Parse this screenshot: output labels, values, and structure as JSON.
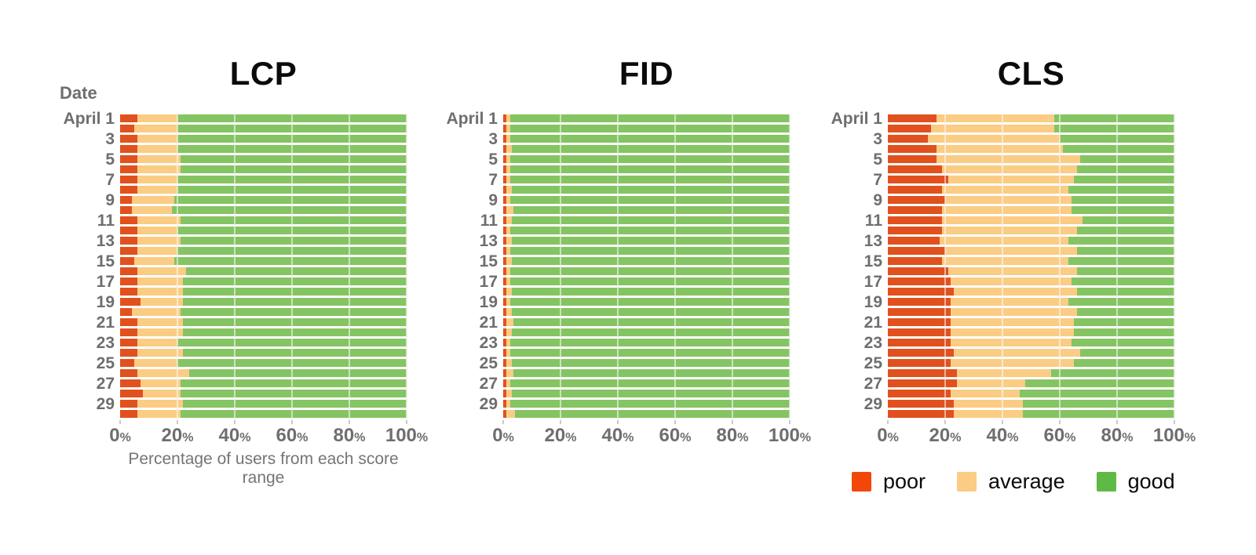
{
  "page": {
    "background": "#ffffff"
  },
  "colors": {
    "poor_bar": "#e0511e",
    "average_bar": "#fbcc84",
    "good_bar": "#85c463",
    "axis_text": "#6e6e6e",
    "title_text": "#0b0b0b",
    "gridline": "#e4e4e4"
  },
  "legend": {
    "items": [
      {
        "label": "poor",
        "color": "#f24708"
      },
      {
        "label": "average",
        "color": "#fbcc84"
      },
      {
        "label": "good",
        "color": "#5fba45"
      }
    ]
  },
  "chart_data": [
    {
      "type": "bar",
      "orientation": "horizontal",
      "stacked": true,
      "title": "LCP",
      "ylabel": "Date",
      "xlabel": "Percentage of users from each score range",
      "xlim": [
        0,
        100
      ],
      "x_ticks": [
        "0%",
        "20%",
        "40%",
        "60%",
        "80%",
        "100%"
      ],
      "visible_y_tick_labels": [
        "April 1",
        "3",
        "5",
        "7",
        "9",
        "11",
        "13",
        "15",
        "17",
        "19",
        "21",
        "23",
        "25",
        "27",
        "29"
      ],
      "categories": [
        "April 1",
        "April 2",
        "April 3",
        "April 4",
        "April 5",
        "April 6",
        "April 7",
        "April 8",
        "April 9",
        "April 10",
        "April 11",
        "April 12",
        "April 13",
        "April 14",
        "April 15",
        "April 16",
        "April 17",
        "April 18",
        "April 19",
        "April 20",
        "April 21",
        "April 22",
        "April 23",
        "April 24",
        "April 25",
        "April 26",
        "April 27",
        "April 28",
        "April 29",
        "April 30"
      ],
      "series": [
        {
          "name": "poor",
          "color": "#e0511e",
          "values": [
            6,
            5,
            6,
            6,
            6,
            6,
            6,
            6,
            4,
            4,
            6,
            6,
            6,
            6,
            5,
            6,
            6,
            6,
            7,
            4,
            6,
            6,
            6,
            6,
            5,
            6,
            7,
            8,
            6,
            6
          ]
        },
        {
          "name": "average",
          "color": "#fbcc84",
          "values": [
            14,
            15,
            14,
            14,
            15,
            15,
            14,
            14,
            15,
            14,
            15,
            14,
            15,
            14,
            14,
            17,
            16,
            16,
            15,
            17,
            16,
            16,
            14,
            16,
            15,
            18,
            14,
            13,
            16,
            15
          ]
        },
        {
          "name": "good",
          "color": "#85c463",
          "values": [
            80,
            80,
            80,
            80,
            79,
            79,
            80,
            80,
            81,
            82,
            79,
            80,
            79,
            80,
            81,
            77,
            78,
            78,
            78,
            79,
            78,
            78,
            80,
            78,
            80,
            76,
            79,
            79,
            78,
            79
          ]
        }
      ]
    },
    {
      "type": "bar",
      "orientation": "horizontal",
      "stacked": true,
      "title": "FID",
      "ylabel": "",
      "xlabel": "",
      "xlim": [
        0,
        100
      ],
      "x_ticks": [
        "0%",
        "20%",
        "40%",
        "60%",
        "80%",
        "100%"
      ],
      "visible_y_tick_labels": [
        "April 1",
        "3",
        "5",
        "7",
        "9",
        "11",
        "13",
        "15",
        "17",
        "19",
        "21",
        "23",
        "25",
        "27",
        "29"
      ],
      "categories": [
        "April 1",
        "April 2",
        "April 3",
        "April 4",
        "April 5",
        "April 6",
        "April 7",
        "April 8",
        "April 9",
        "April 10",
        "April 11",
        "April 12",
        "April 13",
        "April 14",
        "April 15",
        "April 16",
        "April 17",
        "April 18",
        "April 19",
        "April 20",
        "April 21",
        "April 22",
        "April 23",
        "April 24",
        "April 25",
        "April 26",
        "April 27",
        "April 28",
        "April 29",
        "April 30"
      ],
      "series": [
        {
          "name": "poor",
          "color": "#e0511e",
          "values": [
            1,
            1,
            1,
            1,
            1,
            1,
            1,
            1,
            1,
            1,
            1,
            1,
            1,
            1,
            1,
            1,
            1,
            1,
            1,
            1,
            1,
            1,
            1,
            1,
            1,
            1,
            1,
            1,
            1,
            1
          ]
        },
        {
          "name": "average",
          "color": "#fbcc84",
          "values": [
            1.5,
            1.5,
            1.5,
            2,
            1.5,
            1.5,
            1.5,
            2,
            1.5,
            2.5,
            2,
            1.5,
            2,
            1.5,
            2,
            1.5,
            1.5,
            2,
            1.5,
            2,
            2.5,
            2,
            1.5,
            1.5,
            2,
            2.5,
            1.5,
            2,
            1.5,
            3
          ]
        },
        {
          "name": "good",
          "color": "#85c463",
          "values": [
            97.5,
            97.5,
            97.5,
            97,
            97.5,
            97.5,
            97.5,
            97,
            97.5,
            96.5,
            97,
            97.5,
            97,
            97.5,
            97,
            97.5,
            97.5,
            97,
            97.5,
            97,
            96.5,
            97,
            97.5,
            97.5,
            97,
            96.5,
            97.5,
            97,
            97.5,
            96
          ]
        }
      ]
    },
    {
      "type": "bar",
      "orientation": "horizontal",
      "stacked": true,
      "title": "CLS",
      "ylabel": "",
      "xlabel": "",
      "xlim": [
        0,
        100
      ],
      "x_ticks": [
        "0%",
        "20%",
        "40%",
        "60%",
        "80%",
        "100%"
      ],
      "visible_y_tick_labels": [
        "April 1",
        "3",
        "5",
        "7",
        "9",
        "11",
        "13",
        "15",
        "17",
        "19",
        "21",
        "23",
        "25",
        "27",
        "29"
      ],
      "categories": [
        "April 1",
        "April 2",
        "April 3",
        "April 4",
        "April 5",
        "April 6",
        "April 7",
        "April 8",
        "April 9",
        "April 10",
        "April 11",
        "April 12",
        "April 13",
        "April 14",
        "April 15",
        "April 16",
        "April 17",
        "April 18",
        "April 19",
        "April 20",
        "April 21",
        "April 22",
        "April 23",
        "April 24",
        "April 25",
        "April 26",
        "April 27",
        "April 28",
        "April 29",
        "April 30"
      ],
      "series": [
        {
          "name": "poor",
          "color": "#e0511e",
          "values": [
            17,
            15,
            14,
            17,
            17,
            19,
            21,
            19,
            20,
            19,
            19,
            19,
            18,
            20,
            19,
            21,
            22,
            23,
            22,
            22,
            22,
            22,
            22,
            23,
            22,
            24,
            24,
            22,
            23,
            23
          ]
        },
        {
          "name": "average",
          "color": "#fbcc84",
          "values": [
            41,
            43,
            46,
            44,
            50,
            47,
            44,
            44,
            44,
            45,
            49,
            47,
            45,
            46,
            44,
            45,
            42,
            43,
            41,
            44,
            43,
            43,
            42,
            44,
            43,
            33,
            24,
            24,
            24,
            24
          ]
        },
        {
          "name": "good",
          "color": "#85c463",
          "values": [
            42,
            42,
            40,
            39,
            33,
            34,
            35,
            37,
            36,
            36,
            32,
            34,
            37,
            34,
            37,
            34,
            36,
            34,
            37,
            34,
            35,
            35,
            36,
            33,
            35,
            43,
            52,
            54,
            53,
            53
          ]
        }
      ]
    }
  ]
}
